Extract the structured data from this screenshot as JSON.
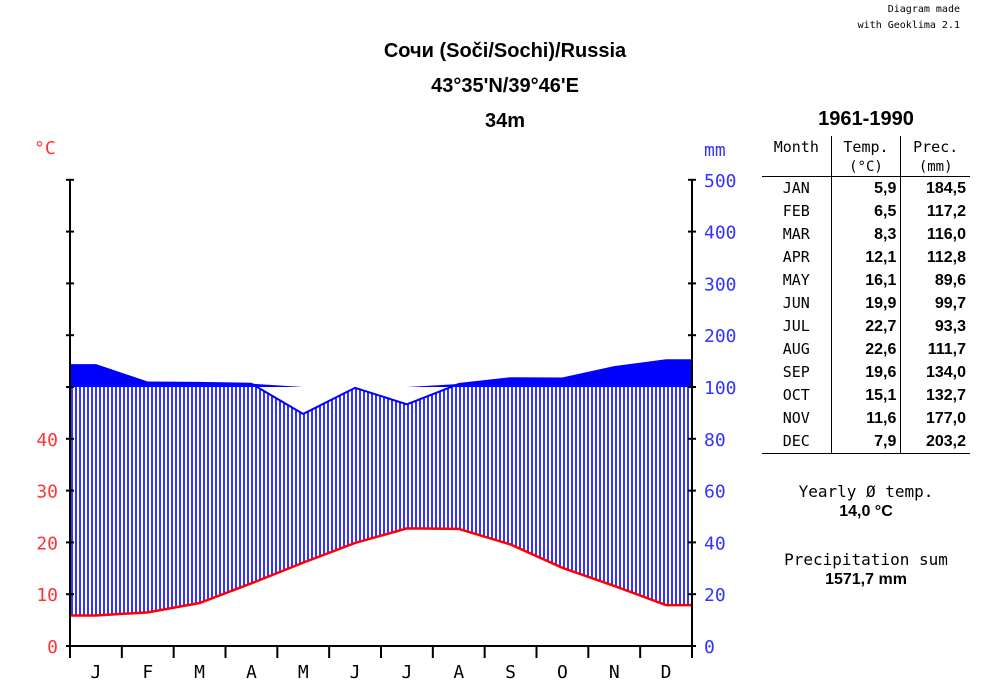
{
  "credit": [
    "Diagram made",
    "with Geoklima 2.1"
  ],
  "station": {
    "name": "Сочи (Soči/Sochi)/Russia",
    "coords": "43°35'N/39°46'E",
    "elevation": "34m"
  },
  "units": {
    "temp": "°C",
    "prec": "mm"
  },
  "colors": {
    "temp": "#ff0000",
    "prec": "#0000ff",
    "temp_axis": "#ff3333",
    "prec_axis": "#3333ff"
  },
  "table": {
    "period": "1961-1990",
    "headers": {
      "month": "Month",
      "temp": "Temp.",
      "temp_unit": "(°C)",
      "prec": "Prec.",
      "prec_unit": "(mm)"
    },
    "rows": [
      {
        "month": "JAN",
        "temp": "5,9",
        "prec": "184,5"
      },
      {
        "month": "FEB",
        "temp": "6,5",
        "prec": "117,2"
      },
      {
        "month": "MAR",
        "temp": "8,3",
        "prec": "116,0"
      },
      {
        "month": "APR",
        "temp": "12,1",
        "prec": "112,8"
      },
      {
        "month": "MAY",
        "temp": "16,1",
        "prec": "89,6"
      },
      {
        "month": "JUN",
        "temp": "19,9",
        "prec": "99,7"
      },
      {
        "month": "JUL",
        "temp": "22,7",
        "prec": "93,3"
      },
      {
        "month": "AUG",
        "temp": "22,6",
        "prec": "111,7"
      },
      {
        "month": "SEP",
        "temp": "19,6",
        "prec": "134,0"
      },
      {
        "month": "OCT",
        "temp": "15,1",
        "prec": "132,7"
      },
      {
        "month": "NOV",
        "temp": "11,6",
        "prec": "177,0"
      },
      {
        "month": "DEC",
        "temp": "7,9",
        "prec": "203,2"
      }
    ]
  },
  "summary": {
    "yearly_temp_label": "Yearly Ø temp.",
    "yearly_temp_value": "14,0 °C",
    "prec_sum_label": "Precipitation sum",
    "prec_sum_value": "1571,7 mm"
  },
  "chart_data": {
    "type": "line",
    "categories": [
      "J",
      "F",
      "M",
      "A",
      "M",
      "J",
      "J",
      "A",
      "S",
      "O",
      "N",
      "D"
    ],
    "series": [
      {
        "name": "Temperature (°C)",
        "values": [
          5.9,
          6.5,
          8.3,
          12.1,
          16.1,
          19.9,
          22.7,
          22.6,
          19.6,
          15.1,
          11.6,
          7.9
        ]
      },
      {
        "name": "Precipitation (mm)",
        "values": [
          184.5,
          117.2,
          116.0,
          112.8,
          89.6,
          99.7,
          93.3,
          111.7,
          134.0,
          132.7,
          177.0,
          203.2
        ]
      }
    ],
    "left_ticks": [
      "0",
      "10",
      "20",
      "30",
      "40"
    ],
    "right_ticks": [
      "0",
      "20",
      "40",
      "60",
      "80",
      "100",
      "200",
      "300",
      "400",
      "500"
    ],
    "left_axis_label": "°C",
    "right_axis_label": "mm",
    "temp_range": [
      0,
      90
    ],
    "prec_scale": {
      "linear_max": 100,
      "compressed_above": 100,
      "max": 500
    }
  }
}
